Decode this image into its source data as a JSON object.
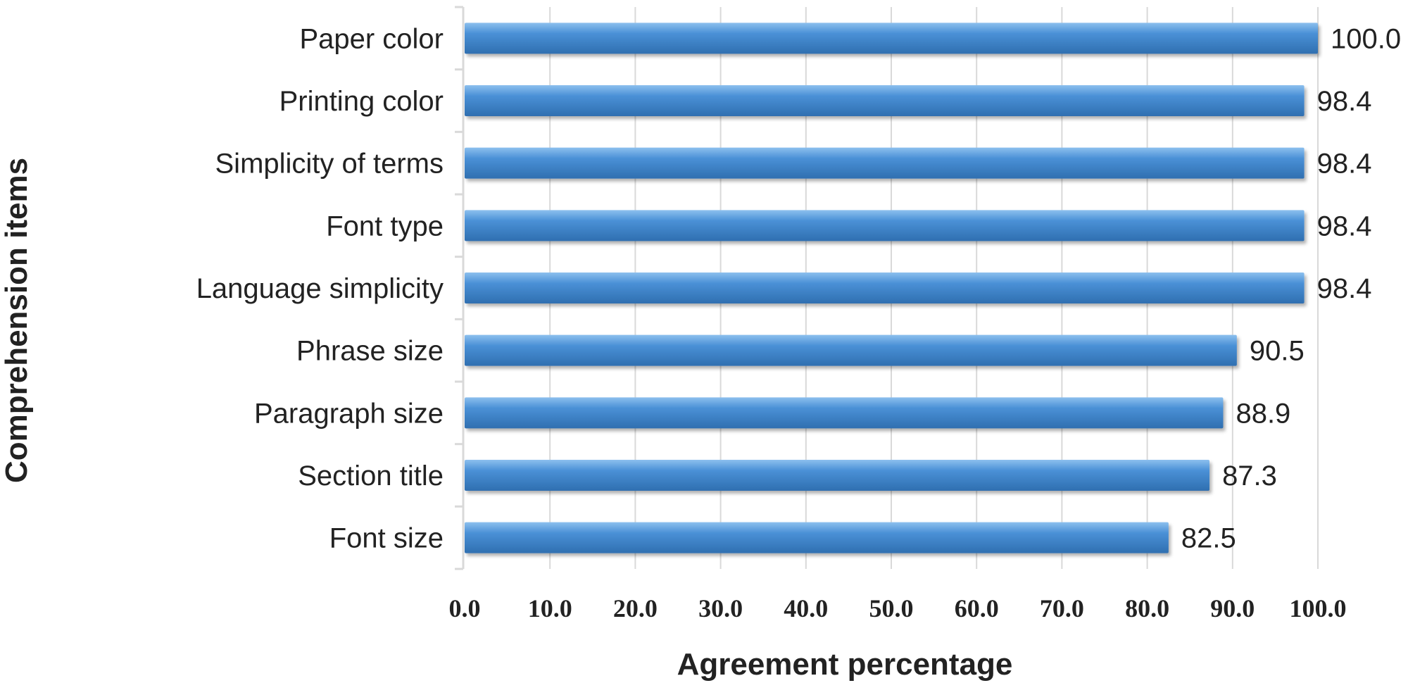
{
  "chart_data": {
    "type": "bar",
    "orientation": "horizontal",
    "categories": [
      "Paper color",
      "Printing color",
      "Simplicity of terms",
      "Font type",
      "Language simplicity",
      "Phrase size",
      "Paragraph size",
      "Section title",
      "Font size"
    ],
    "values": [
      100.0,
      98.4,
      98.4,
      98.4,
      98.4,
      90.5,
      88.9,
      87.3,
      82.5
    ],
    "value_labels": [
      "100.0",
      "98.4",
      "98.4",
      "98.4",
      "98.4",
      "90.5",
      "88.9",
      "87.3",
      "82.5"
    ],
    "xlabel": "Agreement percentage",
    "ylabel": "Comprehension items",
    "xlim": [
      0,
      100
    ],
    "xticks": [
      0,
      10,
      20,
      30,
      40,
      50,
      60,
      70,
      80,
      90,
      100
    ],
    "xtick_labels": [
      "0.0",
      "10.0",
      "20.0",
      "30.0",
      "40.0",
      "50.0",
      "60.0",
      "70.0",
      "80.0",
      "90.0",
      "100.0"
    ],
    "grid": "vertical",
    "bar_color": "#4a90d6",
    "bar_highlight": "#8cc0ee",
    "bar_shadow": "#2f6fb0",
    "grid_color": "#d9d9d9",
    "legend": "none"
  }
}
